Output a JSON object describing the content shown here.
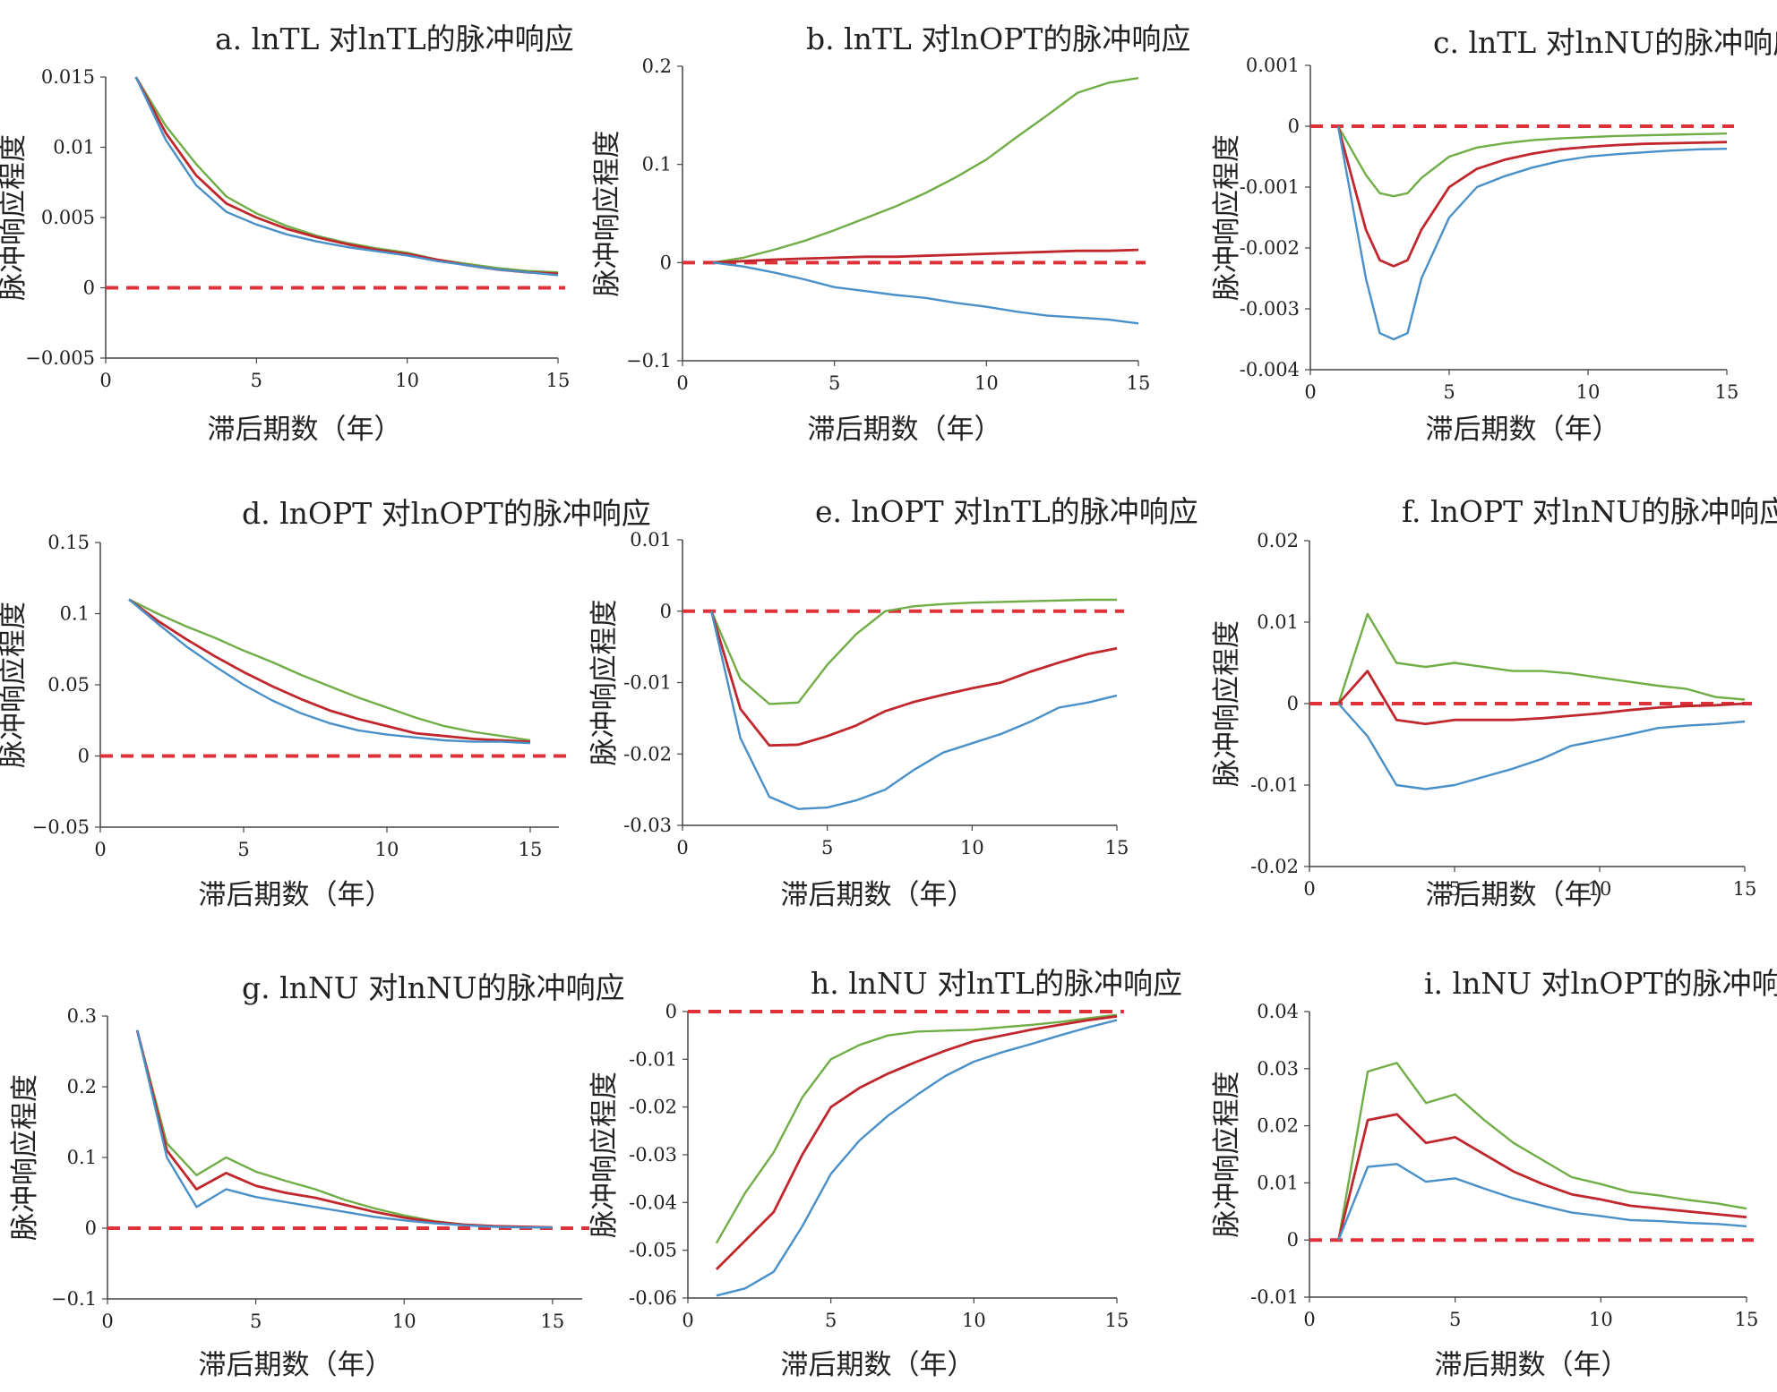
{
  "figure_labels": {
    "xlabel": "滞后期数（年）",
    "ylabel": "脉冲响应程度"
  },
  "colors": {
    "upper": "#70AD47",
    "mid": "#C0272D",
    "lower": "#4A90C8",
    "zero": "#E0313A"
  },
  "chart_data": [
    {
      "id": "a",
      "type": "line",
      "title": "a. lnTL 对lnTL的脉冲响应",
      "xlabel": "滞后期数（年）",
      "ylabel": "脉冲响应程度",
      "xlim": [
        0,
        15
      ],
      "ylim": [
        -0.005,
        0.015
      ],
      "xticks": [
        0,
        5,
        10,
        15
      ],
      "xtick_labels": [
        "0",
        "5",
        "10",
        "15"
      ],
      "yticks": [
        0.015,
        0.01,
        0.005,
        0,
        -0.005
      ],
      "ytick_labels": [
        "0.015",
        "0.01",
        "0.005",
        "0",
        "−0.005"
      ],
      "x": [
        1,
        2,
        3,
        4,
        5,
        6,
        7,
        8,
        9,
        10,
        11,
        12,
        13,
        14,
        15
      ],
      "series": [
        {
          "name": "upper",
          "values": [
            0.015,
            0.0115,
            0.0088,
            0.0065,
            0.0053,
            0.0044,
            0.0037,
            0.0032,
            0.0028,
            0.0025,
            0.002,
            0.0017,
            0.0014,
            0.0012,
            0.0011
          ]
        },
        {
          "name": "mid",
          "values": [
            0.015,
            0.011,
            0.008,
            0.006,
            0.005,
            0.0042,
            0.0036,
            0.0031,
            0.0027,
            0.0024,
            0.002,
            0.0016,
            0.0013,
            0.0011,
            0.001
          ]
        },
        {
          "name": "lower",
          "values": [
            0.015,
            0.0105,
            0.0073,
            0.0054,
            0.0045,
            0.0038,
            0.0033,
            0.0029,
            0.0026,
            0.0023,
            0.0019,
            0.0016,
            0.0013,
            0.0011,
            0.0009
          ]
        }
      ]
    },
    {
      "id": "b",
      "type": "line",
      "title": "b. lnTL 对lnOPT的脉冲响应",
      "xlabel": "滞后期数（年）",
      "ylabel": "脉冲响应程度",
      "xlim": [
        0,
        15
      ],
      "ylim": [
        -0.1,
        0.2
      ],
      "xticks": [
        0,
        5,
        10,
        15
      ],
      "xtick_labels": [
        "0",
        "5",
        "10",
        "15"
      ],
      "yticks": [
        0.2,
        0.1,
        0,
        -0.1
      ],
      "ytick_labels": [
        "0.2",
        "0.1",
        "0",
        "−0.1"
      ],
      "x": [
        1,
        2,
        3,
        4,
        5,
        6,
        7,
        8,
        9,
        10,
        11,
        12,
        13,
        14,
        15
      ],
      "series": [
        {
          "name": "upper",
          "values": [
            0,
            0.005,
            0.013,
            0.022,
            0.033,
            0.045,
            0.057,
            0.071,
            0.087,
            0.105,
            0.128,
            0.15,
            0.173,
            0.183,
            0.188
          ]
        },
        {
          "name": "mid",
          "values": [
            0,
            0.0015,
            0.003,
            0.004,
            0.005,
            0.006,
            0.006,
            0.007,
            0.008,
            0.009,
            0.01,
            0.011,
            0.012,
            0.012,
            0.013
          ]
        },
        {
          "name": "lower",
          "values": [
            0,
            -0.004,
            -0.01,
            -0.017,
            -0.025,
            -0.029,
            -0.033,
            -0.036,
            -0.041,
            -0.045,
            -0.05,
            -0.054,
            -0.056,
            -0.058,
            -0.062
          ]
        }
      ]
    },
    {
      "id": "c",
      "type": "line",
      "title": "c. lnTL 对lnNU的脉冲响应",
      "xlabel": "滞后期数（年）",
      "ylabel": "脉冲响应程度",
      "xlim": [
        0,
        15
      ],
      "ylim": [
        -0.004,
        0.001
      ],
      "xticks": [
        0,
        5,
        10,
        15
      ],
      "xtick_labels": [
        "0",
        "5",
        "10",
        "15"
      ],
      "yticks": [
        0.001,
        0,
        -0.001,
        -0.002,
        -0.003,
        -0.004
      ],
      "ytick_labels": [
        "0.001",
        "0",
        "-0.001",
        "-0.002",
        "-0.003",
        "-0.004"
      ],
      "x": [
        1,
        2,
        2.5,
        3,
        3.5,
        4,
        5,
        6,
        7,
        8,
        9,
        10,
        11,
        12,
        13,
        14,
        15
      ],
      "series": [
        {
          "name": "upper",
          "values": [
            0,
            -0.0008,
            -0.0011,
            -0.00115,
            -0.0011,
            -0.00085,
            -0.0005,
            -0.00035,
            -0.00028,
            -0.00023,
            -0.0002,
            -0.00018,
            -0.00016,
            -0.00015,
            -0.00014,
            -0.00013,
            -0.00012
          ]
        },
        {
          "name": "mid",
          "values": [
            0,
            -0.0017,
            -0.0022,
            -0.0023,
            -0.0022,
            -0.0017,
            -0.001,
            -0.0007,
            -0.00055,
            -0.00045,
            -0.00038,
            -0.00034,
            -0.00031,
            -0.00029,
            -0.00028,
            -0.00027,
            -0.00026
          ]
        },
        {
          "name": "lower",
          "values": [
            0,
            -0.0025,
            -0.0034,
            -0.0035,
            -0.0034,
            -0.0025,
            -0.0015,
            -0.001,
            -0.00082,
            -0.00068,
            -0.00057,
            -0.0005,
            -0.00046,
            -0.00043,
            -0.0004,
            -0.00038,
            -0.00037
          ]
        }
      ]
    },
    {
      "id": "d",
      "type": "line",
      "title": "d. lnOPT 对lnOPT的脉冲响应",
      "xlabel": "滞后期数（年）",
      "ylabel": "脉冲响应程度",
      "xlim": [
        0,
        16
      ],
      "ylim": [
        -0.05,
        0.15
      ],
      "xticks": [
        0,
        5,
        10,
        15
      ],
      "xtick_labels": [
        "0",
        "5",
        "10",
        "15"
      ],
      "yticks": [
        0.15,
        0.1,
        0.05,
        0,
        -0.05
      ],
      "ytick_labels": [
        "0.15",
        "0.1",
        "0.05",
        "0",
        "−0.05"
      ],
      "x": [
        1,
        2,
        3,
        4,
        5,
        6,
        7,
        8,
        9,
        10,
        11,
        12,
        13,
        14,
        15
      ],
      "series": [
        {
          "name": "upper",
          "values": [
            0.11,
            0.1,
            0.091,
            0.083,
            0.074,
            0.066,
            0.057,
            0.049,
            0.041,
            0.034,
            0.027,
            0.021,
            0.017,
            0.014,
            0.011
          ]
        },
        {
          "name": "mid",
          "values": [
            0.11,
            0.095,
            0.082,
            0.07,
            0.059,
            0.049,
            0.04,
            0.032,
            0.026,
            0.021,
            0.016,
            0.014,
            0.012,
            0.011,
            0.01
          ]
        },
        {
          "name": "lower",
          "values": [
            0.11,
            0.093,
            0.077,
            0.063,
            0.05,
            0.039,
            0.03,
            0.023,
            0.018,
            0.015,
            0.013,
            0.011,
            0.01,
            0.01,
            0.009
          ]
        }
      ]
    },
    {
      "id": "e",
      "type": "line",
      "title": "e. lnOPT 对lnTL的脉冲响应",
      "xlabel": "滞后期数（年）",
      "ylabel": "脉冲响应程度",
      "xlim": [
        0,
        15
      ],
      "ylim": [
        -0.03,
        0.01
      ],
      "xticks": [
        0,
        5,
        10,
        15
      ],
      "xtick_labels": [
        "0",
        "5",
        "10",
        "15"
      ],
      "yticks": [
        0.01,
        0,
        -0.01,
        -0.02,
        -0.03
      ],
      "ytick_labels": [
        "0.01",
        "0",
        "-0.01",
        "-0.02",
        "-0.03"
      ],
      "x": [
        1,
        2,
        3,
        4,
        5,
        6,
        7,
        8,
        9,
        10,
        11,
        12,
        13,
        14,
        15
      ],
      "series": [
        {
          "name": "upper",
          "values": [
            0,
            -0.0095,
            -0.013,
            -0.0128,
            -0.0075,
            -0.0032,
            0,
            0.0007,
            0.001,
            0.0012,
            0.0013,
            0.0014,
            0.0015,
            0.0016,
            0.0016
          ]
        },
        {
          "name": "mid",
          "values": [
            0,
            -0.0137,
            -0.0188,
            -0.0187,
            -0.0175,
            -0.016,
            -0.014,
            -0.0127,
            -0.0117,
            -0.0108,
            -0.01,
            -0.0085,
            -0.0072,
            -0.006,
            -0.0052
          ]
        },
        {
          "name": "lower",
          "values": [
            0,
            -0.0178,
            -0.026,
            -0.0277,
            -0.0275,
            -0.0265,
            -0.025,
            -0.0222,
            -0.0198,
            -0.0185,
            -0.0172,
            -0.0155,
            -0.0135,
            -0.0128,
            -0.0118
          ]
        }
      ]
    },
    {
      "id": "f",
      "type": "line",
      "title": "f. lnOPT 对lnNU的脉冲响应",
      "xlabel": "滞后期数（年）",
      "ylabel": "脉冲响应程度",
      "xlim": [
        0,
        15
      ],
      "ylim": [
        -0.02,
        0.02
      ],
      "xticks": [
        0,
        5,
        10,
        15
      ],
      "xtick_labels": [
        "0",
        "5",
        "10",
        "15"
      ],
      "yticks": [
        0.02,
        0.01,
        0,
        -0.01,
        -0.02
      ],
      "ytick_labels": [
        "0.02",
        "0.01",
        "0",
        "-0.01",
        "-0.02"
      ],
      "x": [
        1,
        2,
        3,
        4,
        5,
        6,
        7,
        8,
        9,
        10,
        11,
        12,
        13,
        14,
        15
      ],
      "series": [
        {
          "name": "upper",
          "values": [
            0,
            0.011,
            0.005,
            0.0045,
            0.005,
            0.0045,
            0.004,
            0.004,
            0.0037,
            0.0032,
            0.0027,
            0.0022,
            0.0018,
            0.0008,
            0.0005
          ]
        },
        {
          "name": "mid",
          "values": [
            0,
            0.004,
            -0.002,
            -0.0025,
            -0.002,
            -0.002,
            -0.002,
            -0.0018,
            -0.0015,
            -0.0012,
            -0.0008,
            -0.0005,
            -0.0003,
            -0.0002,
            0
          ]
        },
        {
          "name": "lower",
          "values": [
            0,
            -0.004,
            -0.01,
            -0.0105,
            -0.01,
            -0.009,
            -0.008,
            -0.0068,
            -0.0052,
            -0.0045,
            -0.0038,
            -0.003,
            -0.0027,
            -0.0025,
            -0.0022
          ]
        }
      ]
    },
    {
      "id": "g",
      "type": "line",
      "title": "g. lnNU 对lnNU的脉冲响应",
      "xlabel": "滞后期数（年）",
      "ylabel": "脉冲响应程度",
      "xlim": [
        0,
        16
      ],
      "ylim": [
        -0.1,
        0.3
      ],
      "xticks": [
        0,
        5,
        10,
        15
      ],
      "xtick_labels": [
        "0",
        "5",
        "10",
        "15"
      ],
      "yticks": [
        0.3,
        0.2,
        0.1,
        0,
        -0.1
      ],
      "ytick_labels": [
        "0.3",
        "0.2",
        "0.1",
        "0",
        "−0.1"
      ],
      "x": [
        1,
        2,
        3,
        4,
        5,
        6,
        7,
        8,
        9,
        10,
        11,
        12,
        13,
        14,
        15
      ],
      "series": [
        {
          "name": "upper",
          "values": [
            0.28,
            0.12,
            0.075,
            0.1,
            0.08,
            0.067,
            0.055,
            0.04,
            0.028,
            0.018,
            0.01,
            0.005,
            0.003,
            0.002,
            0.001
          ]
        },
        {
          "name": "mid",
          "values": [
            0.28,
            0.11,
            0.055,
            0.078,
            0.06,
            0.05,
            0.043,
            0.033,
            0.023,
            0.015,
            0.009,
            0.005,
            0.003,
            0.002,
            0.001
          ]
        },
        {
          "name": "lower",
          "values": [
            0.28,
            0.1,
            0.03,
            0.055,
            0.044,
            0.037,
            0.03,
            0.023,
            0.016,
            0.011,
            0.007,
            0.004,
            0.002,
            0.001,
            0.001
          ]
        }
      ]
    },
    {
      "id": "h",
      "type": "line",
      "title": "h. lnNU 对lnTL的脉冲响应",
      "xlabel": "滞后期数（年）",
      "ylabel": "脉冲响应程度",
      "xlim": [
        0,
        15
      ],
      "ylim": [
        -0.06,
        0
      ],
      "xticks": [
        0,
        5,
        10,
        15
      ],
      "xtick_labels": [
        "0",
        "5",
        "10",
        "15"
      ],
      "yticks": [
        0,
        -0.01,
        -0.02,
        -0.03,
        -0.04,
        -0.05,
        -0.06
      ],
      "ytick_labels": [
        "0",
        "-0.01",
        "-0.02",
        "-0.03",
        "-0.04",
        "-0.05",
        "-0.06"
      ],
      "x": [
        1,
        2,
        3,
        4,
        5,
        6,
        7,
        8,
        9,
        10,
        11,
        12,
        13,
        14,
        15
      ],
      "series": [
        {
          "name": "upper",
          "values": [
            -0.0485,
            -0.038,
            -0.0295,
            -0.018,
            -0.01,
            -0.007,
            -0.005,
            -0.0042,
            -0.004,
            -0.0038,
            -0.0033,
            -0.0028,
            -0.0022,
            -0.0014,
            -0.0007
          ]
        },
        {
          "name": "mid",
          "values": [
            -0.054,
            -0.048,
            -0.042,
            -0.03,
            -0.02,
            -0.016,
            -0.013,
            -0.0105,
            -0.0082,
            -0.0062,
            -0.005,
            -0.0038,
            -0.0028,
            -0.0018,
            -0.001
          ]
        },
        {
          "name": "lower",
          "values": [
            -0.0595,
            -0.058,
            -0.0545,
            -0.045,
            -0.034,
            -0.027,
            -0.0218,
            -0.0175,
            -0.0135,
            -0.0105,
            -0.0085,
            -0.0068,
            -0.005,
            -0.0033,
            -0.0018
          ]
        }
      ]
    },
    {
      "id": "i",
      "type": "line",
      "title": "i. lnNU 对lnOPT的脉冲响应",
      "xlabel": "滞后期数（年）",
      "ylabel": "脉冲响应程度",
      "xlim": [
        0,
        15
      ],
      "ylim": [
        -0.01,
        0.04
      ],
      "xticks": [
        0,
        5,
        10,
        15
      ],
      "xtick_labels": [
        "0",
        "5",
        "10",
        "15"
      ],
      "yticks": [
        0.04,
        0.03,
        0.02,
        0.01,
        0,
        -0.01
      ],
      "ytick_labels": [
        "0.04",
        "0.03",
        "0.02",
        "0.01",
        "0",
        "-0.01"
      ],
      "x": [
        1,
        2,
        3,
        4,
        5,
        6,
        7,
        8,
        9,
        10,
        11,
        12,
        13,
        14,
        15
      ],
      "series": [
        {
          "name": "upper",
          "values": [
            0,
            0.0295,
            0.031,
            0.024,
            0.0255,
            0.021,
            0.017,
            0.014,
            0.011,
            0.0098,
            0.0084,
            0.0078,
            0.007,
            0.0064,
            0.0055
          ]
        },
        {
          "name": "mid",
          "values": [
            0,
            0.021,
            0.022,
            0.017,
            0.018,
            0.015,
            0.012,
            0.0098,
            0.008,
            0.0071,
            0.006,
            0.0055,
            0.005,
            0.0045,
            0.004
          ]
        },
        {
          "name": "lower",
          "values": [
            0,
            0.0128,
            0.0133,
            0.0102,
            0.0108,
            0.009,
            0.0073,
            0.006,
            0.0048,
            0.0042,
            0.0035,
            0.0033,
            0.003,
            0.0028,
            0.0024
          ]
        }
      ]
    }
  ]
}
